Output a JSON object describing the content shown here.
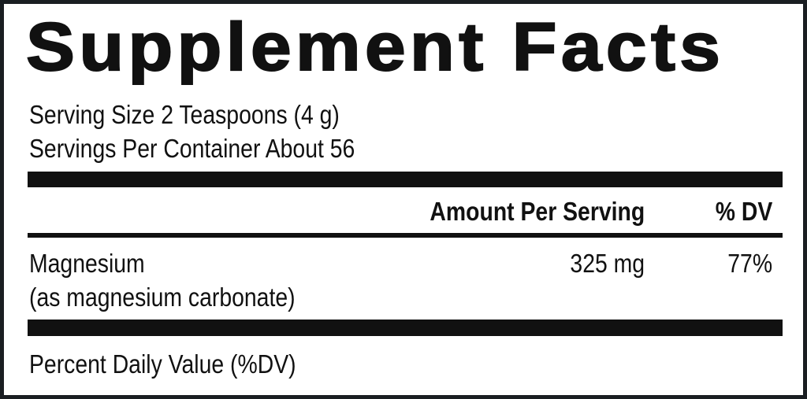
{
  "title": "Supplement Facts",
  "serving_size": "Serving Size 2 Teaspoons (4 g)",
  "servings_per_container": "Servings Per Container About 56",
  "header": {
    "amount": "Amount Per Serving",
    "dv": "% DV"
  },
  "rows": [
    {
      "name": "Magnesium",
      "detail": "(as magnesium carbonate)",
      "amount": "325 mg",
      "dv": "77%"
    }
  ],
  "footnote": "Percent Daily Value (%DV)"
}
